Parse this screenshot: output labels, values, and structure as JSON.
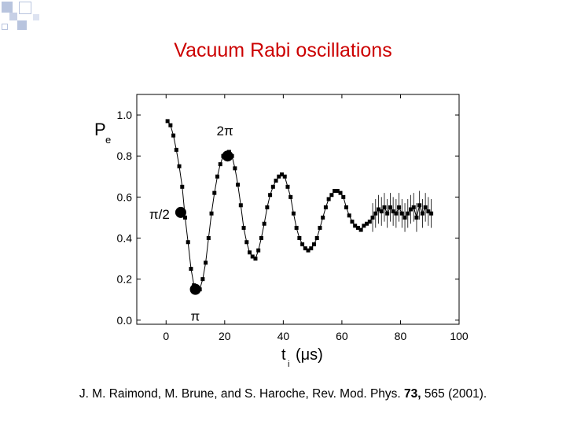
{
  "slide": {
    "title": "Vacuum Rabi oscillations",
    "citation": {
      "prefix": "J. M. Raimond, M. Brune, and S. Haroche, Rev. Mod. Phys. ",
      "volume": "73,",
      "suffix": " 565 (2001)."
    },
    "accent_color": "#cc0000",
    "decoration_color": "#b8c4de"
  },
  "chart_data": {
    "type": "scatter",
    "title": "",
    "ylabel_main": "P",
    "ylabel_sub": "e",
    "xlabel_main": "t",
    "xlabel_sub": "i",
    "xlabel_unit": "(μs)",
    "xlim": [
      -10,
      100
    ],
    "ylim": [
      -0.02,
      1.1
    ],
    "xticks": [
      0,
      20,
      40,
      60,
      80,
      100
    ],
    "yticks": [
      0.0,
      0.2,
      0.4,
      0.6,
      0.8,
      1.0
    ],
    "ytick_labels": [
      "0.0",
      "0.2",
      "0.4",
      "0.6",
      "0.8",
      "1.0"
    ],
    "grid": false,
    "series": [
      {
        "x": [
          0.5,
          1.5,
          2.5,
          3.5,
          4.5,
          5.5,
          6.5,
          7.5,
          8.5,
          9.5,
          10.5,
          11.5,
          12.5,
          13.5,
          14.5,
          15.5,
          16.5,
          17.5,
          18.5,
          19.5,
          20.5,
          21.5,
          22.5,
          23.5,
          24.5,
          25.5,
          26.5,
          27.5,
          28.5,
          29.5,
          30.5,
          31.5,
          32.5,
          33.5,
          34.5,
          35.5,
          36.5,
          37.5,
          38.5,
          39.5,
          40.5,
          41.5,
          42.5,
          43.5,
          44.5,
          45.5,
          46.5,
          47.5,
          48.5,
          49.5,
          50.5,
          51.5,
          52.5,
          53.5,
          54.5,
          55.5,
          56.5,
          57.5,
          58.5,
          59.5,
          60.5,
          61.5,
          62.5,
          63.5,
          64.5,
          65.5,
          66.5,
          67.5,
          68.5,
          69.5,
          70.5,
          71.5,
          72.5,
          73.5,
          74.5,
          75.5,
          76.5,
          77.5,
          78.5,
          79.5,
          80.5,
          81.5,
          82.5,
          83.5,
          84.5,
          85.5,
          86.5,
          87.5,
          88.5,
          89.5,
          90.5
        ],
        "y": [
          0.97,
          0.95,
          0.9,
          0.83,
          0.75,
          0.65,
          0.5,
          0.38,
          0.25,
          0.17,
          0.14,
          0.15,
          0.2,
          0.28,
          0.4,
          0.52,
          0.62,
          0.7,
          0.76,
          0.8,
          0.81,
          0.82,
          0.8,
          0.74,
          0.66,
          0.56,
          0.45,
          0.38,
          0.33,
          0.31,
          0.3,
          0.34,
          0.4,
          0.47,
          0.55,
          0.61,
          0.65,
          0.68,
          0.7,
          0.71,
          0.7,
          0.65,
          0.6,
          0.52,
          0.45,
          0.4,
          0.37,
          0.35,
          0.34,
          0.35,
          0.37,
          0.4,
          0.45,
          0.5,
          0.55,
          0.59,
          0.61,
          0.63,
          0.63,
          0.62,
          0.6,
          0.55,
          0.51,
          0.48,
          0.46,
          0.45,
          0.44,
          0.46,
          0.47,
          0.48,
          0.5,
          0.52,
          0.54,
          0.53,
          0.55,
          0.52,
          0.55,
          0.53,
          0.52,
          0.55,
          0.52,
          0.5,
          0.52,
          0.54,
          0.55,
          0.5,
          0.56,
          0.52,
          0.55,
          0.53,
          0.52
        ],
        "error_bars_from_x": 70,
        "error": 0.07,
        "color": "#000000"
      }
    ],
    "highlighted_points": [
      {
        "x": 5,
        "y": 0.525,
        "label": "π/2"
      },
      {
        "x": 10,
        "y": 0.15,
        "label": "π"
      },
      {
        "x": 21,
        "y": 0.8,
        "label": "2π"
      }
    ]
  }
}
